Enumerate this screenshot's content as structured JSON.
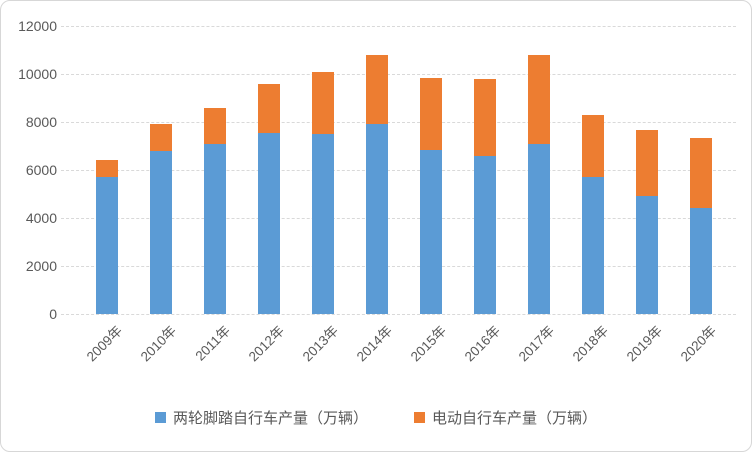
{
  "chart_data": {
    "type": "bar",
    "stacked": true,
    "title": "",
    "categories": [
      "2009年",
      "2010年",
      "2011年",
      "2012年",
      "2013年",
      "2014年",
      "2015年",
      "2016年",
      "2017年",
      "2018年",
      "2019年",
      "2020年"
    ],
    "series": [
      {
        "name": "两轮脚踏自行车产量（万辆）",
        "color": "#5B9BD5",
        "values": [
          5700,
          6800,
          7100,
          7550,
          7500,
          7900,
          6850,
          6600,
          7100,
          5700,
          4900,
          4400
        ]
      },
      {
        "name": "电动自行车产量（万辆）",
        "color": "#ED7D31",
        "values": [
          700,
          1100,
          1500,
          2050,
          2600,
          2900,
          3000,
          3200,
          3700,
          2600,
          2750,
          2950
        ]
      }
    ],
    "totals": [
      6400,
      7900,
      8600,
      9600,
      10100,
      10800,
      9850,
      9800,
      10800,
      8300,
      7650,
      7350
    ],
    "xlabel": "",
    "ylabel": "",
    "ylim": [
      0,
      12000
    ],
    "y_ticks": [
      0,
      2000,
      4000,
      6000,
      8000,
      10000,
      12000
    ],
    "grid": true,
    "gridline_color": "#D9D9D9",
    "axis_text_color": "#595959",
    "legend_position": "bottom"
  }
}
